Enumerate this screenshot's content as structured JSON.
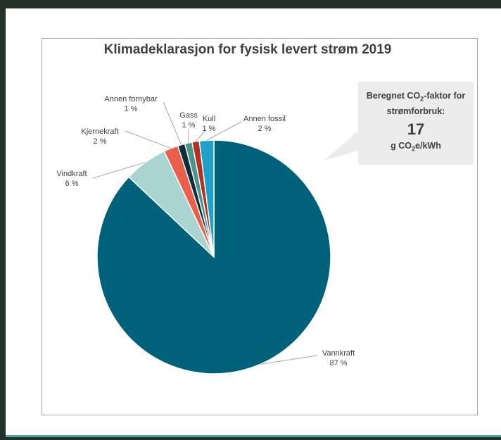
{
  "chart_data": {
    "type": "pie",
    "title": "Klimadeklarasjon for fysisk levert strøm 2019",
    "slices": [
      {
        "name": "Vannkraft",
        "value": 87,
        "label": "87 %",
        "color": "#00627a"
      },
      {
        "name": "Vindkraft",
        "value": 6,
        "label": "6 %",
        "color": "#a9d4d0"
      },
      {
        "name": "Kjernekraft",
        "value": 2,
        "label": "2 %",
        "color": "#e8604c"
      },
      {
        "name": "Annen fornybar",
        "value": 1,
        "label": "1 %",
        "color": "#102c3c"
      },
      {
        "name": "Gass",
        "value": 1,
        "label": "1 %",
        "color": "#4c948c"
      },
      {
        "name": "Kull",
        "value": 1,
        "label": "1 %",
        "color": "#b03022"
      },
      {
        "name": "Annen fossil",
        "value": 2,
        "label": "2 %",
        "color": "#1fa0c8"
      }
    ],
    "callout": {
      "line1a": "Beregnet CO",
      "line1sub": "2",
      "line1b": "-faktor for",
      "line2": "strømforbruk:",
      "value": "17",
      "unit_a": "g CO",
      "unit_sub": "2",
      "unit_b": "e/kWh"
    }
  }
}
